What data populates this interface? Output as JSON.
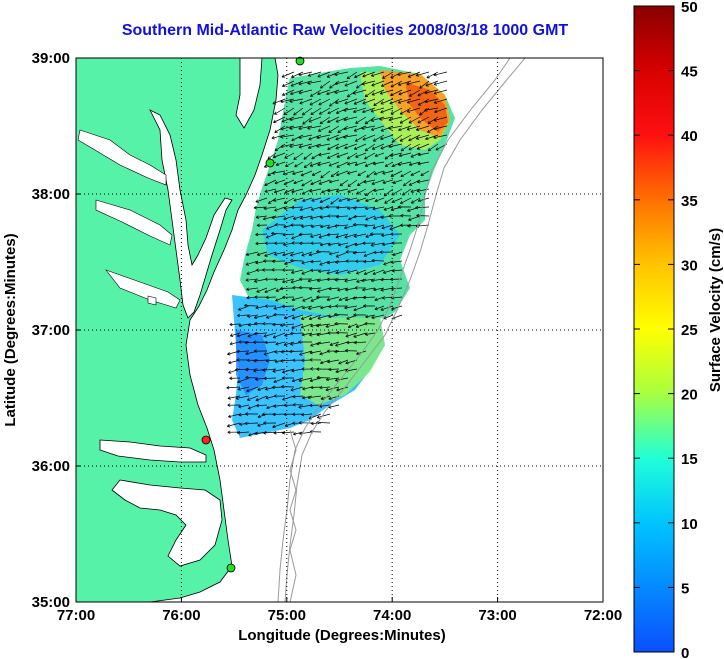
{
  "title": "Southern Mid-Atlantic Raw Velocities 2008/03/18 1000 GMT",
  "x_axis": {
    "label": "Longitude (Degrees:Minutes)",
    "ticks": [
      "77:00",
      "76:00",
      "75:00",
      "74:00",
      "73:00",
      "72:00"
    ]
  },
  "y_axis": {
    "label": "Latitude (Degrees:Minutes)",
    "ticks": [
      "39:00",
      "38:00",
      "37:00",
      "36:00",
      "35:00"
    ]
  },
  "colorbar": {
    "label": "Surface Velocity (cm/s)",
    "ticks": [
      "50",
      "45",
      "40",
      "35",
      "30",
      "25",
      "20",
      "15",
      "10",
      "5",
      "0"
    ],
    "min": 0,
    "max": 50
  },
  "colors": {
    "land": "#55f2a8",
    "title": "#1010e0",
    "coast_line": "#000000",
    "bathymetry": "#999999",
    "grid": "#000000"
  },
  "stations": [
    {
      "status": "green",
      "color": "#22dd22"
    },
    {
      "status": "green",
      "color": "#22dd22"
    },
    {
      "status": "red",
      "color": "#ff2020"
    },
    {
      "status": "green",
      "color": "#22dd22"
    }
  ]
}
